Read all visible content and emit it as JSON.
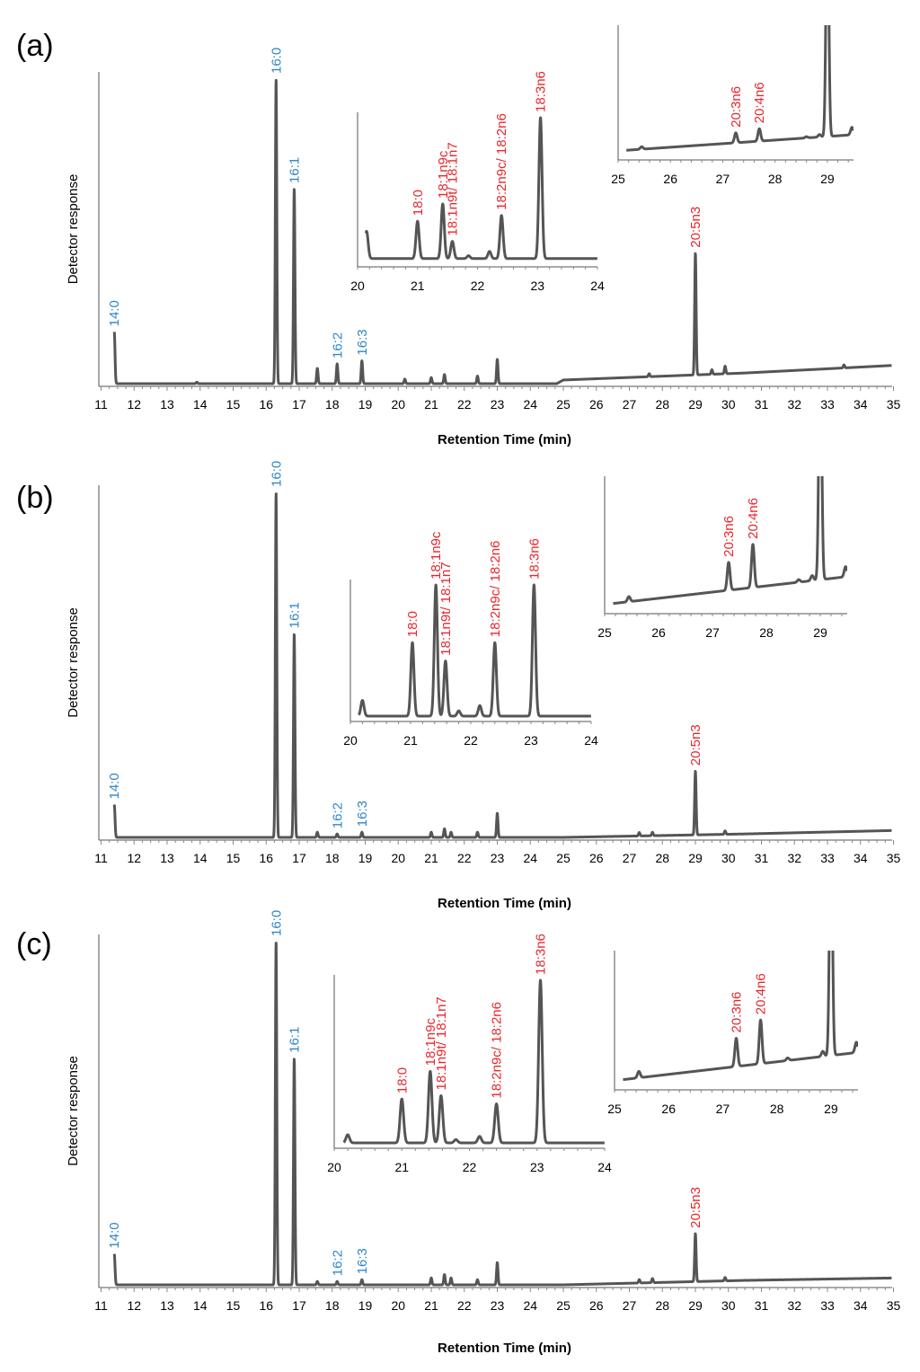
{
  "colors": {
    "trace": "#555555",
    "blue_label": "#2f86c8",
    "red_label": "#e8262b"
  },
  "chart_data": [
    {
      "type": "line",
      "panel_label": "(a)",
      "xlabel": "Retention Time (min)",
      "ylabel": "Detector response",
      "xlim": [
        11,
        35
      ],
      "ylim": [
        0,
        100
      ],
      "x_ticks": [
        11,
        12,
        13,
        14,
        15,
        16,
        17,
        18,
        19,
        20,
        21,
        22,
        23,
        24,
        25,
        26,
        27,
        28,
        29,
        30,
        31,
        32,
        33,
        34,
        35
      ],
      "baseline": {
        "x": [
          11,
          24.8,
          25,
          30.5,
          35
        ],
        "y": [
          0,
          0,
          1.2,
          3.5,
          6
        ]
      },
      "peaks": [
        {
          "x": 11.4,
          "height": 17,
          "label": "14:0",
          "color": "blue"
        },
        {
          "x": 13.9,
          "height": 0.5
        },
        {
          "x": 16.3,
          "height": 100,
          "label": "16:0",
          "color": "blue"
        },
        {
          "x": 16.85,
          "height": 64,
          "label": "16:1",
          "color": "blue"
        },
        {
          "x": 17.55,
          "height": 5
        },
        {
          "x": 18.15,
          "height": 6.5,
          "label": "16:2",
          "color": "blue"
        },
        {
          "x": 18.9,
          "height": 7.5,
          "label": "16:3",
          "color": "blue"
        },
        {
          "x": 20.2,
          "height": 1.5
        },
        {
          "x": 21.0,
          "height": 2
        },
        {
          "x": 21.4,
          "height": 3
        },
        {
          "x": 22.4,
          "height": 2.5
        },
        {
          "x": 23.0,
          "height": 8
        },
        {
          "x": 27.6,
          "height": 1
        },
        {
          "x": 29.0,
          "height": 40,
          "label": "20:5n3",
          "color": "red"
        },
        {
          "x": 29.5,
          "height": 1.5
        },
        {
          "x": 29.9,
          "height": 2.5
        },
        {
          "x": 33.5,
          "height": 1
        }
      ],
      "insets": [
        {
          "xlim": [
            20,
            24
          ],
          "x_ticks": [
            20,
            21,
            22,
            23,
            24
          ],
          "ymax": 100,
          "baseline": {
            "x": [
              20,
              24
            ],
            "y": [
              2,
              2
            ]
          },
          "peaks": [
            {
              "x": 20.15,
              "height": 19
            },
            {
              "x": 21.0,
              "height": 26,
              "label": "18:0",
              "color": "red"
            },
            {
              "x": 21.42,
              "height": 38,
              "label": "18:1n9c",
              "color": "red"
            },
            {
              "x": 21.58,
              "height": 12,
              "label": "18:1n9t/ 18:1n7",
              "color": "red"
            },
            {
              "x": 21.85,
              "height": 2
            },
            {
              "x": 22.2,
              "height": 5
            },
            {
              "x": 22.4,
              "height": 30,
              "label": "18:2n9c/ 18:2n6",
              "color": "red"
            },
            {
              "x": 23.05,
              "height": 98,
              "label": "18:3n6",
              "color": "red"
            }
          ]
        },
        {
          "xlim": [
            25,
            29.5
          ],
          "x_ticks": [
            25,
            26,
            27,
            28,
            29
          ],
          "ymax": 100,
          "baseline": {
            "x": [
              25,
              29.5
            ],
            "y": [
              3,
              16
            ]
          },
          "peaks": [
            {
              "x": 25.45,
              "height": 2
            },
            {
              "x": 27.25,
              "height": 8,
              "label": "20:3n6",
              "color": "red"
            },
            {
              "x": 27.7,
              "height": 10,
              "label": "20:4n6",
              "color": "red"
            },
            {
              "x": 28.6,
              "height": 1
            },
            {
              "x": 28.85,
              "height": 2
            },
            {
              "x": 29.0,
              "height": 200
            },
            {
              "x": 29.47,
              "height": 6
            }
          ]
        }
      ]
    },
    {
      "type": "line",
      "panel_label": "(b)",
      "xlabel": "Retention Time (min)",
      "ylabel": "Detector response",
      "xlim": [
        11,
        35
      ],
      "ylim": [
        0,
        100
      ],
      "x_ticks": [
        11,
        12,
        13,
        14,
        15,
        16,
        17,
        18,
        19,
        20,
        21,
        22,
        23,
        24,
        25,
        26,
        27,
        28,
        29,
        30,
        31,
        32,
        33,
        34,
        35
      ],
      "baseline": {
        "x": [
          11,
          25,
          30.5,
          35
        ],
        "y": [
          0,
          0,
          1,
          2
        ]
      },
      "peaks": [
        {
          "x": 11.4,
          "height": 9.5,
          "label": "14:0",
          "color": "blue"
        },
        {
          "x": 16.3,
          "height": 100,
          "label": "16:0",
          "color": "blue"
        },
        {
          "x": 16.85,
          "height": 59,
          "label": "16:1",
          "color": "blue"
        },
        {
          "x": 17.55,
          "height": 1.5
        },
        {
          "x": 18.15,
          "height": 1,
          "label": "16:2",
          "color": "blue"
        },
        {
          "x": 18.9,
          "height": 1.5,
          "label": "16:3",
          "color": "blue"
        },
        {
          "x": 21.0,
          "height": 1.5
        },
        {
          "x": 21.4,
          "height": 2.5
        },
        {
          "x": 21.6,
          "height": 1.5
        },
        {
          "x": 22.4,
          "height": 1.5
        },
        {
          "x": 23.0,
          "height": 7
        },
        {
          "x": 27.3,
          "height": 1
        },
        {
          "x": 27.7,
          "height": 1
        },
        {
          "x": 29.0,
          "height": 18.5,
          "label": "20:5n3",
          "color": "red"
        },
        {
          "x": 29.9,
          "height": 1
        }
      ],
      "insets": [
        {
          "xlim": [
            20,
            24
          ],
          "x_ticks": [
            20,
            21,
            22,
            23,
            24
          ],
          "ymax": 100,
          "baseline": {
            "x": [
              20,
              24
            ],
            "y": [
              0,
              0
            ]
          },
          "peaks": [
            {
              "x": 20.2,
              "height": 12
            },
            {
              "x": 21.03,
              "height": 56,
              "label": "18:0",
              "color": "red"
            },
            {
              "x": 21.42,
              "height": 100,
              "label": "18:1n9c",
              "color": "red"
            },
            {
              "x": 21.58,
              "height": 42,
              "label": "18:1n9t/ 18:1n7",
              "color": "red"
            },
            {
              "x": 21.8,
              "height": 4
            },
            {
              "x": 22.15,
              "height": 8
            },
            {
              "x": 22.4,
              "height": 56,
              "label": "18:2n9c/ 18:2n6",
              "color": "red"
            },
            {
              "x": 23.05,
              "height": 100,
              "label": "18:3n6",
              "color": "red"
            }
          ]
        },
        {
          "xlim": [
            25,
            29.5
          ],
          "x_ticks": [
            25,
            26,
            27,
            28,
            29
          ],
          "ymax": 100,
          "baseline": {
            "x": [
              25,
              29.5
            ],
            "y": [
              3,
              25
            ]
          },
          "peaks": [
            {
              "x": 25.45,
              "height": 4
            },
            {
              "x": 27.3,
              "height": 22,
              "label": "20:3n6",
              "color": "red"
            },
            {
              "x": 27.75,
              "height": 34,
              "label": "20:4n6",
              "color": "red"
            },
            {
              "x": 28.6,
              "height": 2
            },
            {
              "x": 28.85,
              "height": 4
            },
            {
              "x": 29.0,
              "height": 200
            },
            {
              "x": 29.47,
              "height": 8
            }
          ]
        }
      ]
    },
    {
      "type": "line",
      "panel_label": "(c)",
      "xlabel": "Retention Time (min)",
      "ylabel": "Detector response",
      "xlim": [
        11,
        35
      ],
      "ylim": [
        0,
        100
      ],
      "x_ticks": [
        11,
        12,
        13,
        14,
        15,
        16,
        17,
        18,
        19,
        20,
        21,
        22,
        23,
        24,
        25,
        26,
        27,
        28,
        29,
        30,
        31,
        32,
        33,
        34,
        35
      ],
      "baseline": {
        "x": [
          11,
          25,
          30.5,
          35
        ],
        "y": [
          0,
          0,
          1.3,
          2
        ]
      },
      "peaks": [
        {
          "x": 11.4,
          "height": 9,
          "label": "14:0",
          "color": "blue"
        },
        {
          "x": 16.3,
          "height": 100,
          "label": "16:0",
          "color": "blue"
        },
        {
          "x": 16.85,
          "height": 66,
          "label": "16:1",
          "color": "blue"
        },
        {
          "x": 17.55,
          "height": 1
        },
        {
          "x": 18.15,
          "height": 1,
          "label": "16:2",
          "color": "blue"
        },
        {
          "x": 18.9,
          "height": 1.5,
          "label": "16:3",
          "color": "blue"
        },
        {
          "x": 21.0,
          "height": 2
        },
        {
          "x": 21.4,
          "height": 3
        },
        {
          "x": 21.6,
          "height": 2
        },
        {
          "x": 22.4,
          "height": 1.5
        },
        {
          "x": 23.0,
          "height": 6.5
        },
        {
          "x": 27.3,
          "height": 1
        },
        {
          "x": 27.7,
          "height": 1.2
        },
        {
          "x": 29.0,
          "height": 14,
          "label": "20:5n3",
          "color": "red"
        },
        {
          "x": 29.9,
          "height": 1
        }
      ],
      "insets": [
        {
          "xlim": [
            20,
            24
          ],
          "x_ticks": [
            20,
            21,
            22,
            23,
            24
          ],
          "ymax": 100,
          "baseline": {
            "x": [
              20,
              24
            ],
            "y": [
              0,
              0
            ]
          },
          "peaks": [
            {
              "x": 20.2,
              "height": 5
            },
            {
              "x": 21.0,
              "height": 27,
              "label": "18:0",
              "color": "red"
            },
            {
              "x": 21.42,
              "height": 44,
              "label": "18:1n9c",
              "color": "red"
            },
            {
              "x": 21.58,
              "height": 29,
              "label": "18:1n9t/ 18:1n7",
              "color": "red"
            },
            {
              "x": 21.8,
              "height": 2
            },
            {
              "x": 22.15,
              "height": 4
            },
            {
              "x": 22.4,
              "height": 24,
              "label": "18:2n9c/ 18:2n6",
              "color": "red"
            },
            {
              "x": 23.05,
              "height": 100,
              "label": "18:3n6",
              "color": "red"
            }
          ]
        },
        {
          "xlim": [
            25,
            29.5
          ],
          "x_ticks": [
            25,
            26,
            27,
            28,
            29
          ],
          "ymax": 100,
          "baseline": {
            "x": [
              25,
              29.5
            ],
            "y": [
              3,
              25
            ]
          },
          "peaks": [
            {
              "x": 25.45,
              "height": 5
            },
            {
              "x": 27.25,
              "height": 22,
              "label": "20:3n6",
              "color": "red"
            },
            {
              "x": 27.7,
              "height": 34,
              "label": "20:4n6",
              "color": "red"
            },
            {
              "x": 28.2,
              "height": 2
            },
            {
              "x": 28.85,
              "height": 4
            },
            {
              "x": 29.0,
              "height": 200
            },
            {
              "x": 29.47,
              "height": 8
            }
          ]
        }
      ]
    }
  ]
}
